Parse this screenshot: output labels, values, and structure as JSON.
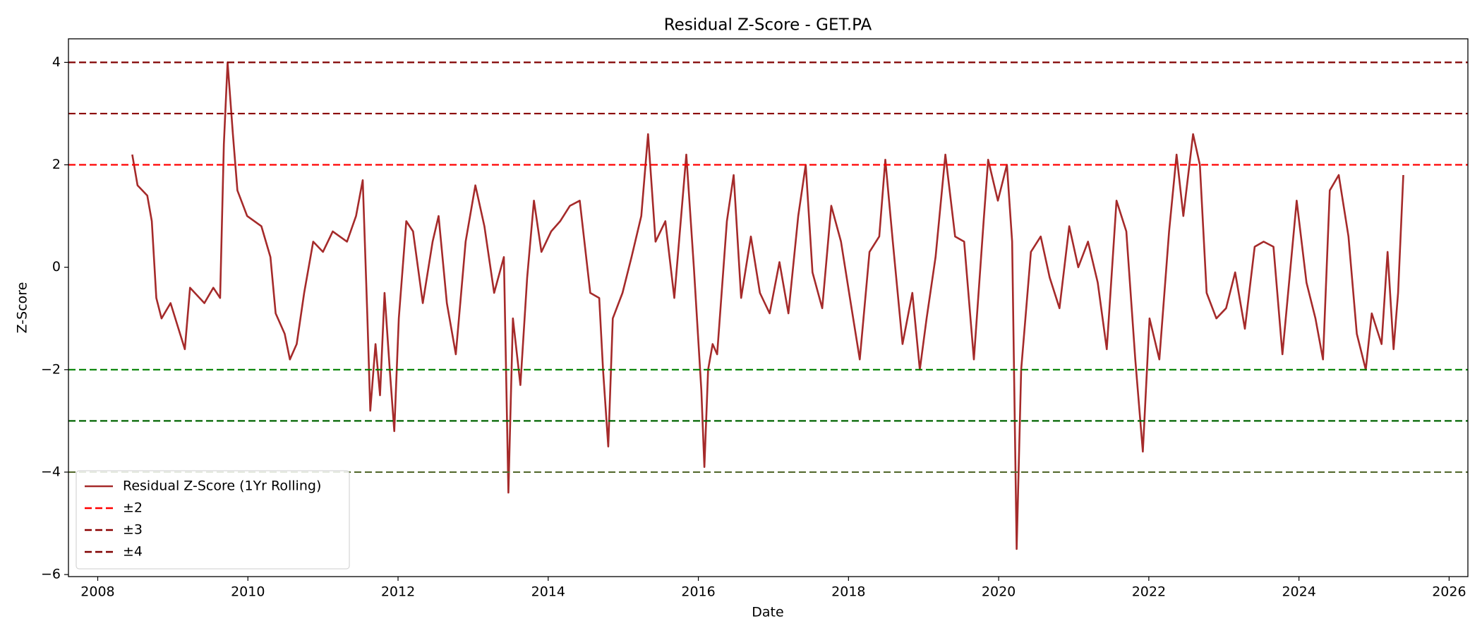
{
  "chart_data": {
    "type": "line",
    "title": "Residual Z-Score - GET.PA",
    "x_label": "Date",
    "y_label": "Z-Score",
    "x": [
      2008.46,
      2008.53,
      2008.66,
      2008.72,
      2008.78,
      2008.85,
      2008.97,
      2009.16,
      2009.23,
      2009.42,
      2009.54,
      2009.63,
      2009.68,
      2009.73,
      2009.8,
      2009.86,
      2009.99,
      2010.18,
      2010.3,
      2010.37,
      2010.49,
      2010.56,
      2010.65,
      2010.75,
      2010.87,
      2011.0,
      2011.13,
      2011.32,
      2011.44,
      2011.53,
      2011.59,
      2011.63,
      2011.7,
      2011.76,
      2011.82,
      2011.89,
      2011.95,
      2012.01,
      2012.11,
      2012.2,
      2012.33,
      2012.46,
      2012.54,
      2012.65,
      2012.77,
      2012.9,
      2013.03,
      2013.15,
      2013.28,
      2013.41,
      2013.47,
      2013.53,
      2013.63,
      2013.72,
      2013.81,
      2013.91,
      2014.04,
      2014.16,
      2014.29,
      2014.42,
      2014.56,
      2014.68,
      2014.73,
      2014.8,
      2014.86,
      2014.99,
      2015.11,
      2015.24,
      2015.33,
      2015.43,
      2015.56,
      2015.68,
      2015.84,
      2015.94,
      2016.04,
      2016.08,
      2016.13,
      2016.19,
      2016.25,
      2016.38,
      2016.47,
      2016.57,
      2016.7,
      2016.82,
      2016.95,
      2017.08,
      2017.2,
      2017.33,
      2017.43,
      2017.52,
      2017.65,
      2017.77,
      2017.9,
      2018.03,
      2018.15,
      2018.28,
      2018.41,
      2018.49,
      2018.59,
      2018.72,
      2018.85,
      2018.95,
      2019.04,
      2019.16,
      2019.29,
      2019.42,
      2019.54,
      2019.67,
      2019.8,
      2019.86,
      2019.99,
      2020.11,
      2020.18,
      2020.24,
      2020.3,
      2020.43,
      2020.56,
      2020.68,
      2020.81,
      2020.94,
      2021.06,
      2021.19,
      2021.32,
      2021.44,
      2021.57,
      2021.7,
      2021.82,
      2021.92,
      2022.01,
      2022.14,
      2022.27,
      2022.37,
      2022.46,
      2022.59,
      2022.68,
      2022.77,
      2022.9,
      2023.03,
      2023.15,
      2023.28,
      2023.41,
      2023.53,
      2023.66,
      2023.78,
      2023.97,
      2024.1,
      2024.22,
      2024.32,
      2024.41,
      2024.53,
      2024.66,
      2024.77,
      2024.89,
      2024.97,
      2025.1,
      2025.18,
      2025.26,
      2025.32,
      2025.39
    ],
    "series": [
      {
        "name": "Residual Z-Score (1Yr Rolling)",
        "color": "#a52a2a",
        "values": [
          2.2,
          1.6,
          1.4,
          0.9,
          -0.6,
          -1.0,
          -0.7,
          -1.6,
          -0.4,
          -0.7,
          -0.4,
          -0.6,
          2.4,
          4.0,
          2.6,
          1.5,
          1.0,
          0.8,
          0.2,
          -0.9,
          -1.3,
          -1.8,
          -1.5,
          -0.5,
          0.5,
          0.3,
          0.7,
          0.5,
          1.0,
          1.7,
          -0.9,
          -2.8,
          -1.5,
          -2.5,
          -0.5,
          -2.0,
          -3.2,
          -1.0,
          0.9,
          0.7,
          -0.7,
          0.5,
          1.0,
          -0.7,
          -1.7,
          0.5,
          1.6,
          0.8,
          -0.5,
          0.2,
          -4.4,
          -1.0,
          -2.3,
          -0.2,
          1.3,
          0.3,
          0.7,
          0.9,
          1.2,
          1.3,
          -0.5,
          -0.6,
          -2.0,
          -3.5,
          -1.0,
          -0.5,
          0.2,
          1.0,
          2.6,
          0.5,
          0.9,
          -0.6,
          2.2,
          0.0,
          -2.4,
          -3.9,
          -2.0,
          -1.5,
          -1.7,
          0.9,
          1.8,
          -0.6,
          0.6,
          -0.5,
          -0.9,
          0.1,
          -0.9,
          1.0,
          2.0,
          -0.1,
          -0.8,
          1.2,
          0.5,
          -0.7,
          -1.8,
          0.3,
          0.6,
          2.1,
          0.5,
          -1.5,
          -0.5,
          -2.0,
          -1.0,
          0.2,
          2.2,
          0.6,
          0.5,
          -1.8,
          0.9,
          2.1,
          1.3,
          2.0,
          0.5,
          -5.5,
          -2.0,
          0.3,
          0.6,
          -0.2,
          -0.8,
          0.8,
          0.0,
          0.5,
          -0.3,
          -1.6,
          1.3,
          0.7,
          -1.8,
          -3.6,
          -1.0,
          -1.8,
          0.7,
          2.2,
          1.0,
          2.6,
          2.0,
          -0.5,
          -1.0,
          -0.8,
          -0.1,
          -1.2,
          0.4,
          0.5,
          0.4,
          -1.7,
          1.3,
          -0.3,
          -1.0,
          -1.8,
          1.5,
          1.8,
          0.6,
          -1.3,
          -2.0,
          -0.9,
          -1.5,
          0.3,
          -1.6,
          -0.5,
          1.8
        ]
      }
    ],
    "reference_lines": [
      {
        "name": "±2",
        "color": "#ff0000",
        "y": 2
      },
      {
        "name": "±3",
        "color": "#8b0000",
        "y": 3
      },
      {
        "name": "±4",
        "color": "#800000",
        "y": 4
      },
      {
        "color": "#008000",
        "y": -2
      },
      {
        "color": "#006400",
        "y": -3
      },
      {
        "color": "#556b2f",
        "y": -4
      }
    ],
    "xlim": [
      2007.61,
      2026.25
    ],
    "ylim": [
      -6.04,
      4.46
    ],
    "xticks": [
      2008,
      2010,
      2012,
      2014,
      2016,
      2018,
      2020,
      2022,
      2024,
      2026
    ],
    "yticks": [
      {
        "value": -6,
        "label": "−6"
      },
      {
        "value": -4,
        "label": "−4"
      },
      {
        "value": -2,
        "label": "−2"
      },
      0,
      2,
      4
    ],
    "legend": "lower left"
  }
}
